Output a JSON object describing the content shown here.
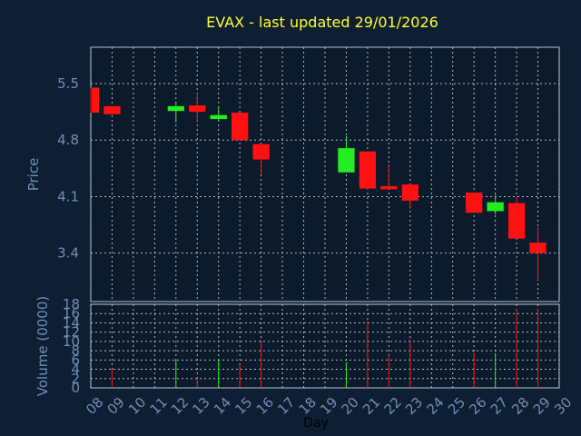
{
  "chart_data": [
    {
      "type": "candlestick",
      "title": "EVAX - last updated 29/01/2026",
      "xlabel": "Day",
      "ylabel": "Price",
      "ylim": [
        2.8,
        5.95
      ],
      "yticks": [
        "5.5",
        "4.8",
        "4.1",
        "3.4"
      ],
      "x_tick_labels": [
        "08",
        "09",
        "10",
        "11",
        "12",
        "13",
        "14",
        "15",
        "16",
        "17",
        "18",
        "19",
        "20",
        "21",
        "22",
        "23",
        "24",
        "25",
        "26",
        "27",
        "28",
        "29",
        "30"
      ],
      "grid": true,
      "colors": {
        "up": "#22ee22",
        "down": "#ff1111",
        "background": "#0f1f33",
        "plot_background": "#0c1b2c"
      },
      "candles": [
        {
          "x": 8,
          "open": 5.45,
          "high": 5.45,
          "low": 5.14,
          "close": 5.14
        },
        {
          "x": 9,
          "open": 5.22,
          "high": 5.22,
          "low": 5.12,
          "close": 5.12
        },
        {
          "x": 12,
          "open": 5.16,
          "high": 5.27,
          "low": 5.02,
          "close": 5.22
        },
        {
          "x": 13,
          "open": 5.23,
          "high": 5.38,
          "low": 5.02,
          "close": 5.15
        },
        {
          "x": 14,
          "open": 5.06,
          "high": 5.21,
          "low": 5.03,
          "close": 5.11
        },
        {
          "x": 15,
          "open": 5.14,
          "high": 5.14,
          "low": 4.79,
          "close": 4.8
        },
        {
          "x": 16,
          "open": 4.75,
          "high": 4.75,
          "low": 4.37,
          "close": 4.56
        },
        {
          "x": 20,
          "open": 4.4,
          "high": 4.85,
          "low": 4.4,
          "close": 4.7
        },
        {
          "x": 21,
          "open": 4.66,
          "high": 4.66,
          "low": 4.18,
          "close": 4.2
        },
        {
          "x": 22,
          "open": 4.23,
          "high": 4.5,
          "low": 4.19,
          "close": 4.19
        },
        {
          "x": 23,
          "open": 4.25,
          "high": 4.25,
          "low": 3.95,
          "close": 4.05
        },
        {
          "x": 26,
          "open": 4.15,
          "high": 4.15,
          "low": 3.9,
          "close": 3.9
        },
        {
          "x": 27,
          "open": 3.92,
          "high": 4.12,
          "low": 3.88,
          "close": 4.03
        },
        {
          "x": 28,
          "open": 4.02,
          "high": 4.1,
          "low": 3.58,
          "close": 3.58
        },
        {
          "x": 29,
          "open": 3.53,
          "high": 3.72,
          "low": 3.07,
          "close": 3.4
        }
      ]
    },
    {
      "type": "bar",
      "ylabel": "Volume (0000)",
      "xlabel": "Day",
      "ylim": [
        0,
        18
      ],
      "yticks": [
        "18",
        "16",
        "14",
        "12",
        "10",
        "8",
        "6",
        "4",
        "2",
        "0"
      ],
      "grid": true,
      "bars": [
        {
          "x": 9,
          "value": 4.0,
          "direction": "down"
        },
        {
          "x": 12,
          "value": 6.0,
          "direction": "up"
        },
        {
          "x": 13,
          "value": 2.0,
          "direction": "down"
        },
        {
          "x": 14,
          "value": 6.0,
          "direction": "up"
        },
        {
          "x": 15,
          "value": 5.0,
          "direction": "down"
        },
        {
          "x": 16,
          "value": 10.0,
          "direction": "down"
        },
        {
          "x": 20,
          "value": 5.5,
          "direction": "up"
        },
        {
          "x": 21,
          "value": 14.5,
          "direction": "down"
        },
        {
          "x": 22,
          "value": 7.0,
          "direction": "down"
        },
        {
          "x": 23,
          "value": 10.5,
          "direction": "down"
        },
        {
          "x": 26,
          "value": 7.5,
          "direction": "down"
        },
        {
          "x": 27,
          "value": 7.5,
          "direction": "up"
        },
        {
          "x": 28,
          "value": 17.0,
          "direction": "down"
        },
        {
          "x": 29,
          "value": 17.0,
          "direction": "down"
        }
      ]
    }
  ]
}
